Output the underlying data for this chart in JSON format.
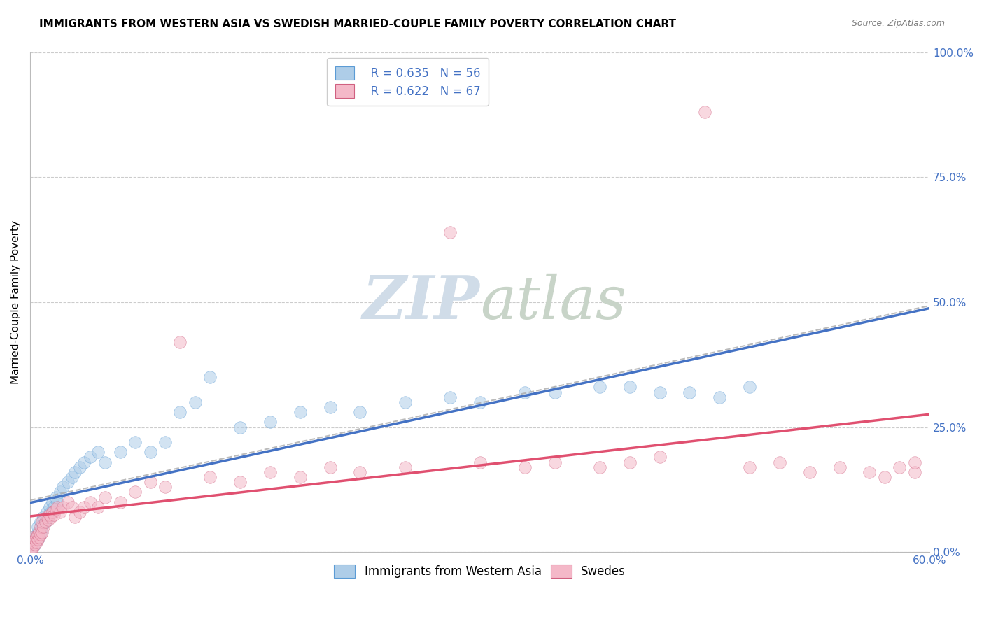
{
  "title": "IMMIGRANTS FROM WESTERN ASIA VS SWEDISH MARRIED-COUPLE FAMILY POVERTY CORRELATION CHART",
  "source": "Source: ZipAtlas.com",
  "ylabel": "Married-Couple Family Poverty",
  "legend_label1": "Immigrants from Western Asia",
  "legend_label2": "Swedes",
  "R1": 0.635,
  "N1": 56,
  "R2": 0.622,
  "N2": 67,
  "color_blue_fill": "#aecde8",
  "color_blue_edge": "#5b9bd5",
  "color_blue_line": "#4472c4",
  "color_pink_fill": "#f4b8c8",
  "color_pink_edge": "#d06080",
  "color_pink_line": "#e05070",
  "color_blue_text": "#4472c4",
  "xmin": 0.0,
  "xmax": 0.6,
  "ymin": 0.0,
  "ymax": 1.0,
  "yticks": [
    0.0,
    0.25,
    0.5,
    0.75,
    1.0
  ],
  "ytick_labels_right": [
    "0.0%",
    "25.0%",
    "50.0%",
    "75.0%",
    "100.0%"
  ],
  "xtick_labels": [
    "0.0%",
    "60.0%"
  ],
  "title_fontsize": 11,
  "axis_fontsize": 11,
  "legend_fontsize": 12,
  "scatter_size": 160,
  "scatter_alpha": 0.55,
  "blue_x": [
    0.001,
    0.001,
    0.002,
    0.002,
    0.003,
    0.003,
    0.004,
    0.005,
    0.005,
    0.006,
    0.007,
    0.007,
    0.008,
    0.009,
    0.01,
    0.011,
    0.012,
    0.013,
    0.014,
    0.015,
    0.016,
    0.017,
    0.018,
    0.02,
    0.022,
    0.025,
    0.028,
    0.03,
    0.033,
    0.036,
    0.04,
    0.045,
    0.05,
    0.06,
    0.07,
    0.08,
    0.09,
    0.1,
    0.11,
    0.12,
    0.14,
    0.16,
    0.18,
    0.2,
    0.22,
    0.25,
    0.28,
    0.3,
    0.33,
    0.35,
    0.38,
    0.4,
    0.42,
    0.44,
    0.46,
    0.48
  ],
  "blue_y": [
    0.01,
    0.02,
    0.02,
    0.03,
    0.015,
    0.025,
    0.03,
    0.04,
    0.05,
    0.03,
    0.04,
    0.06,
    0.05,
    0.07,
    0.06,
    0.08,
    0.07,
    0.09,
    0.08,
    0.1,
    0.09,
    0.11,
    0.1,
    0.12,
    0.13,
    0.14,
    0.15,
    0.16,
    0.17,
    0.18,
    0.19,
    0.2,
    0.18,
    0.2,
    0.22,
    0.2,
    0.22,
    0.28,
    0.3,
    0.35,
    0.25,
    0.26,
    0.28,
    0.29,
    0.28,
    0.3,
    0.31,
    0.3,
    0.32,
    0.32,
    0.33,
    0.33,
    0.32,
    0.32,
    0.31,
    0.33
  ],
  "pink_x": [
    0.001,
    0.001,
    0.001,
    0.002,
    0.002,
    0.002,
    0.003,
    0.003,
    0.004,
    0.004,
    0.005,
    0.005,
    0.006,
    0.006,
    0.007,
    0.007,
    0.008,
    0.008,
    0.009,
    0.01,
    0.011,
    0.012,
    0.013,
    0.014,
    0.015,
    0.016,
    0.017,
    0.018,
    0.02,
    0.022,
    0.025,
    0.028,
    0.03,
    0.033,
    0.036,
    0.04,
    0.045,
    0.05,
    0.06,
    0.07,
    0.08,
    0.09,
    0.1,
    0.12,
    0.14,
    0.16,
    0.18,
    0.2,
    0.22,
    0.25,
    0.28,
    0.3,
    0.33,
    0.35,
    0.38,
    0.4,
    0.42,
    0.45,
    0.48,
    0.5,
    0.52,
    0.54,
    0.56,
    0.57,
    0.58,
    0.59,
    0.59
  ],
  "pink_y": [
    0.005,
    0.01,
    0.02,
    0.01,
    0.02,
    0.03,
    0.015,
    0.025,
    0.02,
    0.03,
    0.025,
    0.035,
    0.03,
    0.04,
    0.035,
    0.05,
    0.04,
    0.06,
    0.05,
    0.06,
    0.07,
    0.065,
    0.075,
    0.07,
    0.08,
    0.075,
    0.085,
    0.09,
    0.08,
    0.09,
    0.1,
    0.09,
    0.07,
    0.08,
    0.09,
    0.1,
    0.09,
    0.11,
    0.1,
    0.12,
    0.14,
    0.13,
    0.42,
    0.15,
    0.14,
    0.16,
    0.15,
    0.17,
    0.16,
    0.17,
    0.64,
    0.18,
    0.17,
    0.18,
    0.17,
    0.18,
    0.19,
    0.88,
    0.17,
    0.18,
    0.16,
    0.17,
    0.16,
    0.15,
    0.17,
    0.16,
    0.18
  ]
}
